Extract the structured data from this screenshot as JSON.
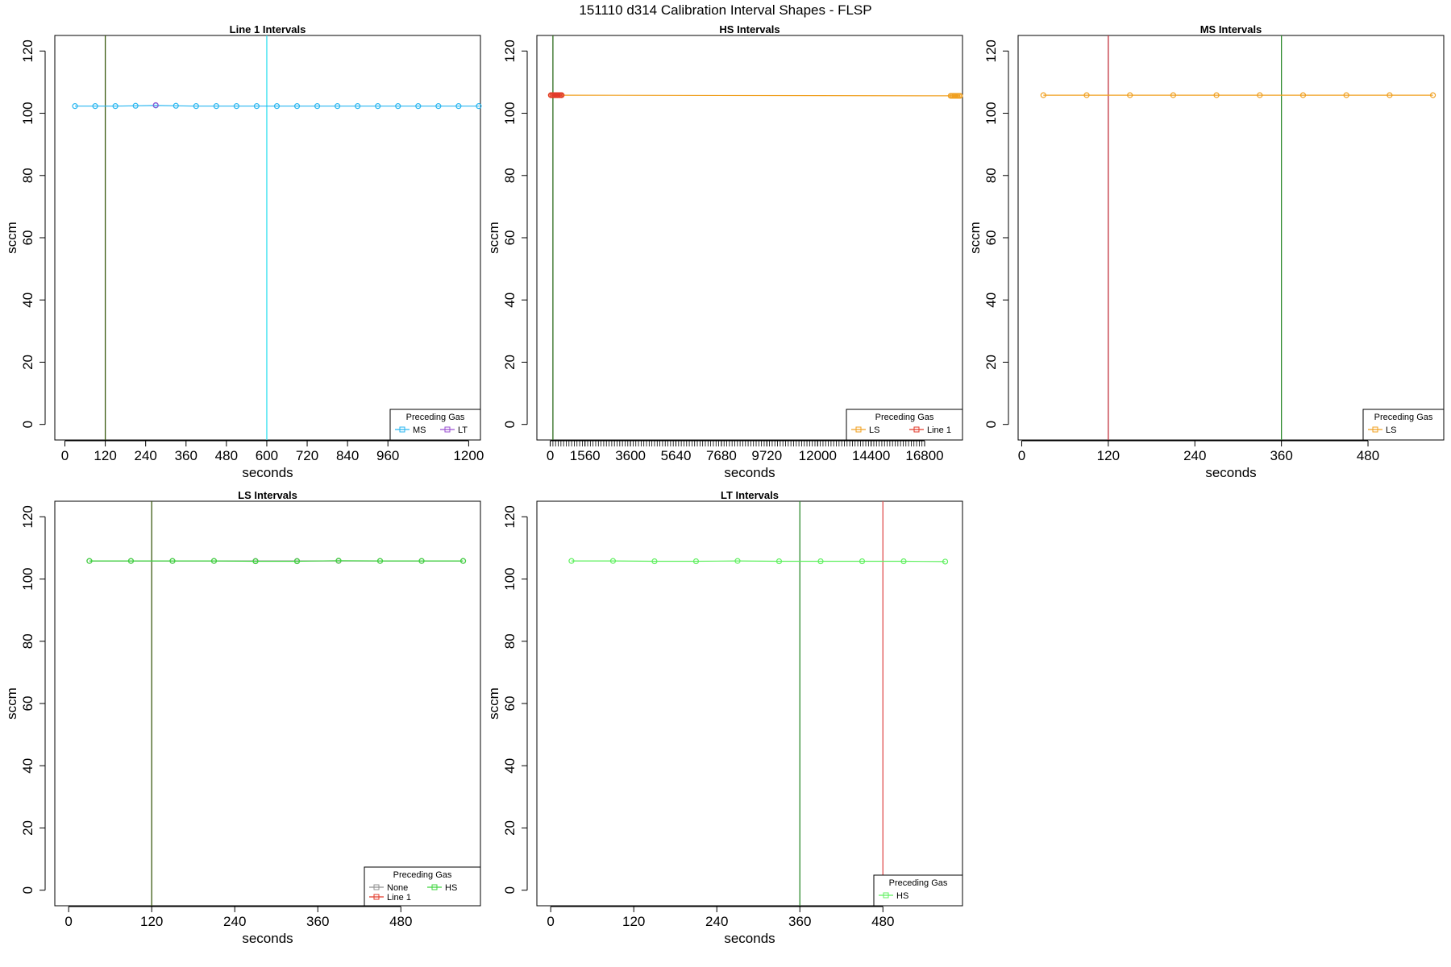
{
  "figure_title": "151110   d314   Calibration Interval Shapes - FLSP",
  "chart_data": [
    {
      "type": "line",
      "title": "Line 1 Intervals",
      "xlabel": "seconds",
      "ylabel": "sccm",
      "xlim": [
        -30,
        1235
      ],
      "ylim": [
        -5,
        125
      ],
      "xticks": [
        0,
        120,
        240,
        360,
        480,
        600,
        720,
        840,
        960,
        1200
      ],
      "yticks": [
        0,
        20,
        40,
        60,
        80,
        100,
        120
      ],
      "vlines": [
        {
          "x": 120,
          "color": "#3b5a10"
        },
        {
          "x": 600,
          "color": "#33e0f0"
        }
      ],
      "series": [
        {
          "name": "MS",
          "color": "#29b6f0",
          "x": [
            30,
            90,
            150,
            210,
            270,
            330,
            390,
            450,
            510,
            570,
            630,
            690,
            750,
            810,
            870,
            930,
            990,
            1050,
            1110,
            1170,
            1230
          ],
          "y": [
            102.3,
            102.3,
            102.3,
            102.4,
            102.5,
            102.4,
            102.3,
            102.3,
            102.3,
            102.3,
            102.3,
            102.3,
            102.3,
            102.3,
            102.3,
            102.3,
            102.3,
            102.3,
            102.3,
            102.3,
            102.3
          ]
        },
        {
          "name": "LT",
          "color": "#9a4fd0",
          "x": [
            270
          ],
          "y": [
            102.6
          ]
        }
      ],
      "legend": {
        "title": "Preceding Gas",
        "position": "bottom-right",
        "entries": [
          "MS",
          "LT"
        ]
      }
    },
    {
      "type": "line",
      "title": "HS Intervals",
      "xlabel": "seconds",
      "ylabel": "sccm",
      "xlim": [
        -600,
        18500
      ],
      "ylim": [
        -5,
        125
      ],
      "xticks": [
        0,
        1560,
        3600,
        5640,
        7680,
        9720,
        12000,
        14400,
        16800
      ],
      "yticks": [
        0,
        20,
        40,
        60,
        80,
        100,
        120
      ],
      "minor_tick_step": 120,
      "vlines": [
        {
          "x": 120,
          "color": "#2d6b1c"
        }
      ],
      "series": [
        {
          "name": "LS",
          "color": "#f0a020",
          "x": [
            30,
            90,
            150,
            210,
            270,
            330,
            390,
            450,
            510,
            17970,
            18030,
            18090,
            18150,
            18210,
            18270,
            18330,
            18390
          ],
          "y": [
            105.8,
            105.8,
            105.8,
            105.8,
            105.8,
            105.8,
            105.8,
            105.8,
            105.8,
            105.6,
            105.6,
            105.6,
            105.6,
            105.6,
            105.6,
            105.6,
            105.6
          ]
        },
        {
          "name": "Line 1",
          "color": "#e23a2a",
          "x": [
            30,
            90,
            150,
            210,
            270,
            330,
            390,
            450,
            510
          ],
          "y": [
            105.8,
            105.8,
            105.8,
            105.8,
            105.8,
            105.8,
            105.8,
            105.8,
            105.8
          ]
        }
      ],
      "legend": {
        "title": "Preceding Gas",
        "position": "bottom-right",
        "entries": [
          "LS",
          "Line 1"
        ]
      }
    },
    {
      "type": "line",
      "title": "MS Intervals",
      "xlabel": "seconds",
      "ylabel": "sccm",
      "xlim": [
        -5,
        585
      ],
      "ylim": [
        -5,
        125
      ],
      "xticks": [
        0,
        120,
        240,
        360,
        480
      ],
      "yticks": [
        0,
        20,
        40,
        60,
        80,
        100,
        120
      ],
      "vlines": [
        {
          "x": 120,
          "color": "#c0303a"
        },
        {
          "x": 360,
          "color": "#2d8a2d"
        }
      ],
      "series": [
        {
          "name": "LS",
          "color": "#f0a020",
          "x": [
            30,
            90,
            150,
            210,
            270,
            330,
            390,
            450,
            510,
            570
          ],
          "y": [
            105.8,
            105.8,
            105.8,
            105.8,
            105.8,
            105.8,
            105.8,
            105.8,
            105.8,
            105.8
          ]
        }
      ],
      "legend": {
        "title": "Preceding Gas",
        "position": "bottom-right",
        "entries": [
          "LS"
        ]
      }
    },
    {
      "type": "line",
      "title": "LS Intervals",
      "xlabel": "seconds",
      "ylabel": "sccm",
      "xlim": [
        -20,
        595
      ],
      "ylim": [
        -5,
        125
      ],
      "xticks": [
        0,
        120,
        240,
        360,
        480
      ],
      "yticks": [
        0,
        20,
        40,
        60,
        80,
        100,
        120
      ],
      "vlines": [
        {
          "x": 120,
          "color": "#3b5a10"
        }
      ],
      "series": [
        {
          "name": "None",
          "color": "#909090",
          "x": [
            30,
            90,
            150,
            210,
            270,
            330,
            390,
            450,
            510,
            570
          ],
          "y": [
            105.8,
            105.8,
            105.8,
            105.8,
            105.8,
            105.8,
            105.8,
            105.8,
            105.8,
            105.8
          ]
        },
        {
          "name": "HS",
          "color": "#3fd43f",
          "x": [
            30,
            90,
            150,
            210,
            270,
            330,
            390,
            450,
            510,
            570
          ],
          "y": [
            105.8,
            105.8,
            105.8,
            105.8,
            105.7,
            105.7,
            105.9,
            105.8,
            105.8,
            105.8
          ]
        },
        {
          "name": "Line 1",
          "color": "#e23a2a",
          "x": [],
          "y": []
        }
      ],
      "legend": {
        "title": "Preceding Gas",
        "position": "bottom-right",
        "entries": [
          "None",
          "Line 1",
          "HS"
        ]
      }
    },
    {
      "type": "line",
      "title": "LT Intervals",
      "xlabel": "seconds",
      "ylabel": "sccm",
      "xlim": [
        -20,
        595
      ],
      "ylim": [
        -5,
        125
      ],
      "xticks": [
        0,
        120,
        240,
        360,
        480
      ],
      "yticks": [
        0,
        20,
        40,
        60,
        80,
        100,
        120
      ],
      "vlines": [
        {
          "x": 360,
          "color": "#2d8a2d"
        },
        {
          "x": 480,
          "color": "#e05050"
        }
      ],
      "series": [
        {
          "name": "HS",
          "color": "#5ff05f",
          "x": [
            30,
            90,
            150,
            210,
            270,
            330,
            390,
            450,
            510,
            570
          ],
          "y": [
            105.8,
            105.8,
            105.7,
            105.7,
            105.8,
            105.7,
            105.7,
            105.7,
            105.7,
            105.6
          ]
        }
      ],
      "legend": {
        "title": "Preceding Gas",
        "position": "bottom-right",
        "entries": [
          "HS"
        ]
      }
    }
  ]
}
